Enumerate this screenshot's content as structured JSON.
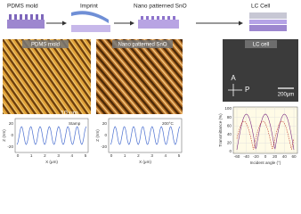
{
  "top": {
    "labels": [
      "PDMS mold",
      "Imprint",
      "Nano patterned SnO",
      "LC Cell"
    ]
  },
  "images": [
    {
      "label": "PDMS mold",
      "scale": "10 μm"
    },
    {
      "label": "Nano patterned SnO"
    },
    {
      "label": "LC cell",
      "scale": "200μm",
      "analyzer": "A",
      "polarizer": "P"
    }
  ],
  "profiles": [
    {
      "annotation": "Stamp",
      "y_label": "Z (nm)",
      "x_label": "X (μm)",
      "yticks": [
        "20",
        "0",
        "-20"
      ],
      "xticks": [
        "0",
        "1",
        "2",
        "3",
        "4",
        "5"
      ]
    },
    {
      "annotation": "200°C",
      "y_label": "Z (nm)",
      "x_label": "X (μm)",
      "yticks": [
        "20",
        "0",
        "-20"
      ],
      "xticks": [
        "0",
        "1",
        "2",
        "3",
        "4",
        "5"
      ]
    }
  ],
  "transmittance": {
    "y_label": "Transmittance (%)",
    "x_label": "Incident angle (°)",
    "yticks": [
      "100",
      "80",
      "60",
      "40",
      "20",
      "0"
    ],
    "xticks": [
      "-60",
      "-40",
      "-20",
      "0",
      "20",
      "40",
      "60"
    ]
  }
}
